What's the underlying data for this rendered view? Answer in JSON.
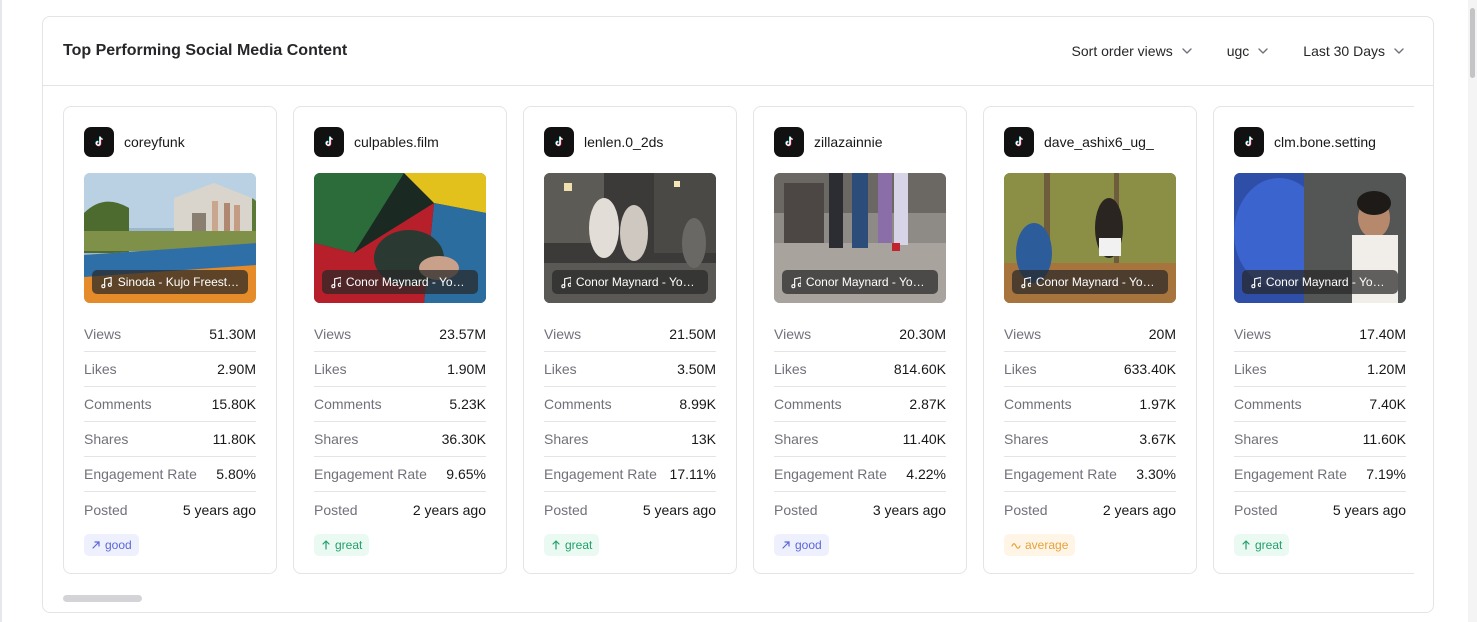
{
  "header": {
    "title": "Top Performing Social Media Content",
    "filters": [
      {
        "label": "Sort order views"
      },
      {
        "label": "ugc"
      },
      {
        "label": "Last 30 Days"
      }
    ]
  },
  "stat_labels": {
    "views": "Views",
    "likes": "Likes",
    "comments": "Comments",
    "shares": "Shares",
    "engagement_rate": "Engagement Rate",
    "posted": "Posted"
  },
  "cards": [
    {
      "username": "coreyfunk",
      "music": "Sinoda - Kujo Freestyle",
      "views": "51.30M",
      "likes": "2.90M",
      "comments": "15.80K",
      "shares": "11.80K",
      "engagement_rate": "5.80%",
      "posted": "5 years ago",
      "badge": "good",
      "badge_icon": "trend-up-icon"
    },
    {
      "username": "culpables.film",
      "music": "Conor Maynard - Your Song",
      "views": "23.57M",
      "likes": "1.90M",
      "comments": "5.23K",
      "shares": "36.30K",
      "engagement_rate": "9.65%",
      "posted": "2 years ago",
      "badge": "great",
      "badge_icon": "arrow-up-icon"
    },
    {
      "username": "lenlen.0_2ds",
      "music": "Conor Maynard - Your Song",
      "views": "21.50M",
      "likes": "3.50M",
      "comments": "8.99K",
      "shares": "13K",
      "engagement_rate": "17.11%",
      "posted": "5 years ago",
      "badge": "great",
      "badge_icon": "arrow-up-icon"
    },
    {
      "username": "zillazainnie",
      "music": "Conor Maynard - Your Song",
      "views": "20.30M",
      "likes": "814.60K",
      "comments": "2.87K",
      "shares": "11.40K",
      "engagement_rate": "4.22%",
      "posted": "3 years ago",
      "badge": "good",
      "badge_icon": "trend-up-icon"
    },
    {
      "username": "dave_ashix6_ug_",
      "music": "Conor Maynard - Your Song",
      "views": "20M",
      "likes": "633.40K",
      "comments": "1.97K",
      "shares": "3.67K",
      "engagement_rate": "3.30%",
      "posted": "2 years ago",
      "badge": "average",
      "badge_icon": "wave-icon"
    },
    {
      "username": "clm.bone.setting",
      "music": "Conor Maynard - Your Song",
      "views": "17.40M",
      "likes": "1.20M",
      "comments": "7.40K",
      "shares": "11.60K",
      "engagement_rate": "7.19%",
      "posted": "5 years ago",
      "badge": "great",
      "badge_icon": "arrow-up-icon"
    }
  ],
  "colors": {
    "good": "#5a67d8",
    "great": "#22a06b",
    "average": "#e6a23c"
  }
}
